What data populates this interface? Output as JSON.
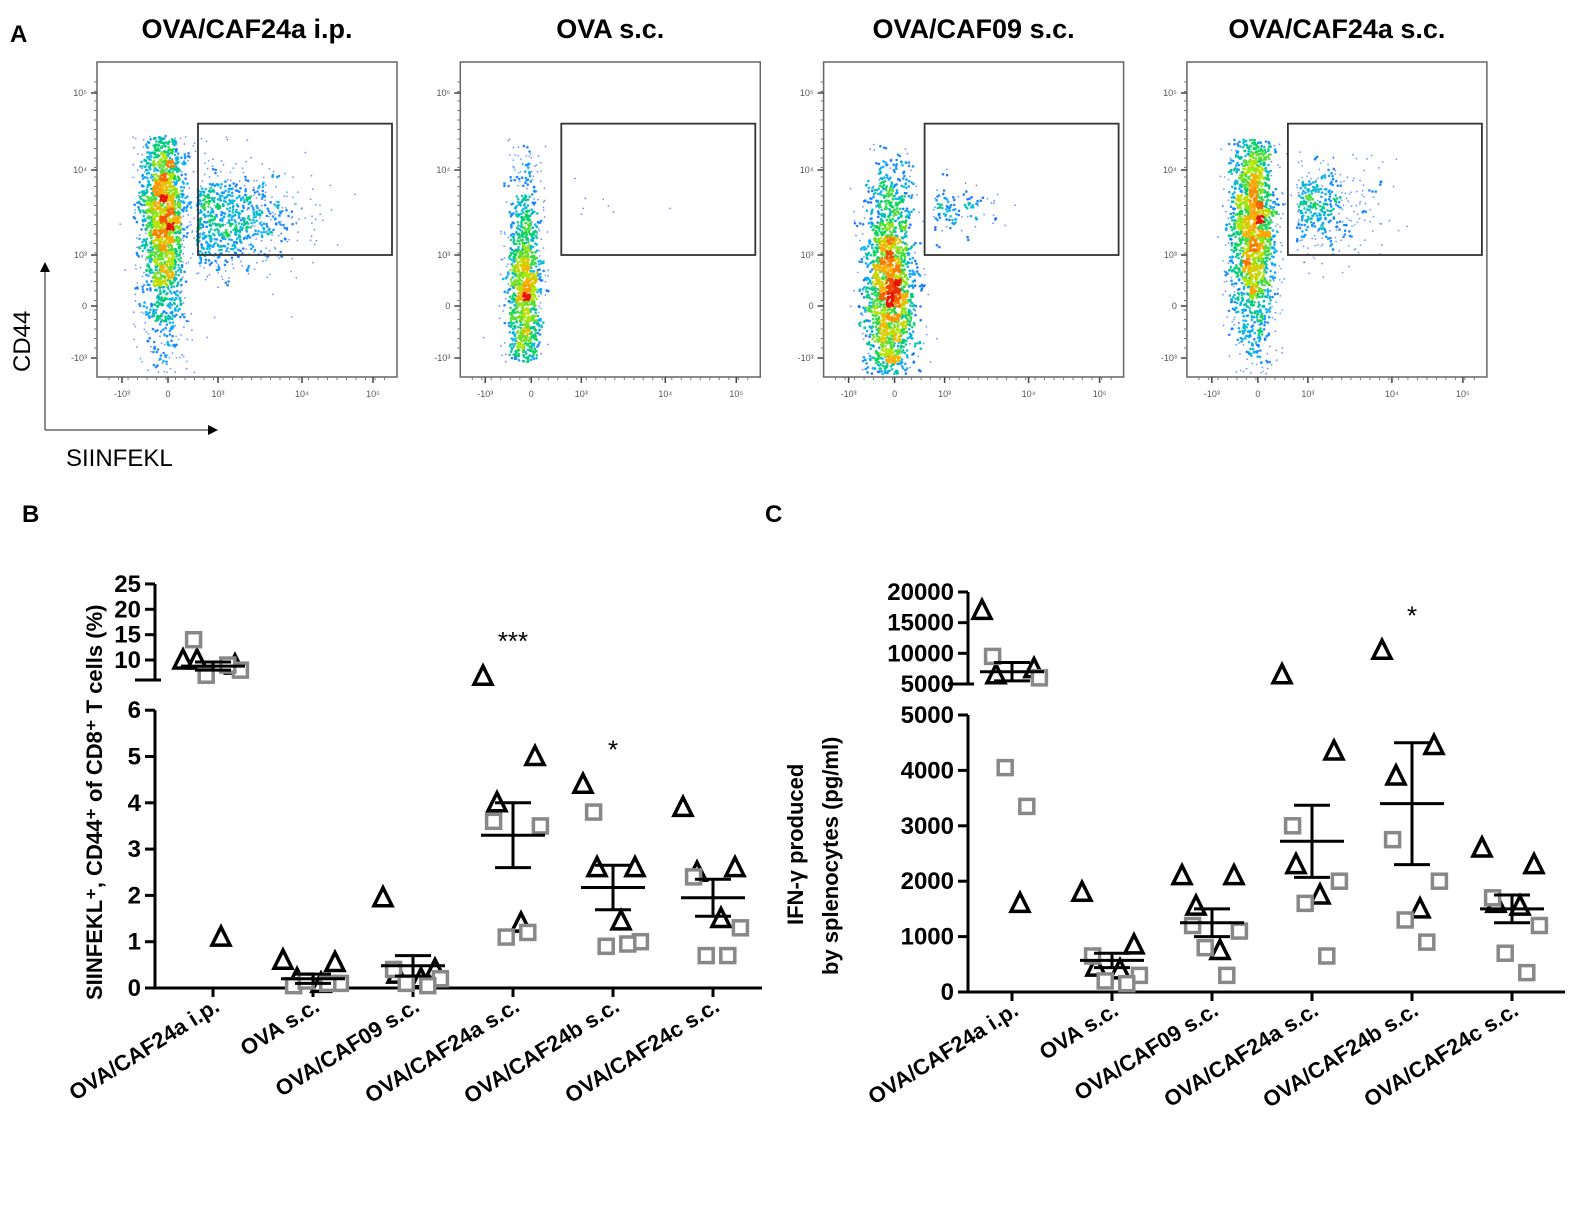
{
  "panel_letters": {
    "a": "A",
    "b": "B",
    "c": "C"
  },
  "colors": {
    "triangle": "#000000",
    "square": "#888888",
    "gate": "#333333",
    "axis": "#000000"
  },
  "chart_data": [
    {
      "type": "scatter",
      "panel": "A",
      "xlabel": "SIINFEKL",
      "ylabel": "CD44",
      "x_ticks": [
        {
          "v": -1000,
          "label": "-10³"
        },
        {
          "v": 0,
          "label": "0"
        },
        {
          "v": 1000,
          "label": "10³"
        },
        {
          "v": 10000,
          "label": "10⁴"
        },
        {
          "v": 100000,
          "label": "10⁵"
        }
      ],
      "y_ticks": [
        {
          "v": -1000,
          "label": "-10³"
        },
        {
          "v": 0,
          "label": "0"
        },
        {
          "v": 1000,
          "label": "10³"
        },
        {
          "v": 10000,
          "label": "10⁴"
        },
        {
          "v": 100000,
          "label": "10⁵"
        }
      ],
      "gate": {
        "x": [
          600,
          200000
        ],
        "y": [
          1000,
          40000
        ]
      },
      "plots": [
        {
          "title": "OVA/CAF24a i.p.",
          "populations": [
            {
              "kind": "main",
              "x_center": -100,
              "x_sd": 230,
              "y_range": [
                -1500,
                25000
              ],
              "y_hot": 3000,
              "events": 1900
            },
            {
              "kind": "cloud",
              "x_range": [
                500,
                9000
              ],
              "y_range": [
                300,
                15000
              ],
              "y_hot": 2500,
              "events": 750
            }
          ]
        },
        {
          "title": "OVA s.c.",
          "populations": [
            {
              "kind": "main",
              "x_center": -150,
              "x_sd": 170,
              "y_range": [
                -1000,
                25000
              ],
              "y_hot": 200,
              "events": 1200
            },
            {
              "kind": "cloud",
              "x_range": [
                700,
                8000
              ],
              "y_range": [
                1500,
                12000
              ],
              "y_hot": 4000,
              "events": 8
            }
          ]
        },
        {
          "title": "OVA/CAF09 s.c.",
          "populations": [
            {
              "kind": "main",
              "x_center": -120,
              "x_sd": 250,
              "y_range": [
                -1500,
                20000
              ],
              "y_hot": 300,
              "events": 2000
            },
            {
              "kind": "cloud",
              "x_range": [
                700,
                4500
              ],
              "y_range": [
                1200,
                8000
              ],
              "y_hot": 3500,
              "events": 110
            }
          ]
        },
        {
          "title": "OVA/CAF24a s.c.",
          "populations": [
            {
              "kind": "main",
              "x_center": -100,
              "x_sd": 230,
              "y_range": [
                -1500,
                22000
              ],
              "y_hot": 2000,
              "events": 1900
            },
            {
              "kind": "cloud",
              "x_range": [
                700,
                6000
              ],
              "y_range": [
                600,
                15000
              ],
              "y_hot": 3500,
              "events": 380
            }
          ]
        }
      ]
    },
    {
      "type": "scatter",
      "panel": "B",
      "ylabel": "SIINFEKL⁺, CD44⁺ of CD8⁺ T cells (%)",
      "categories": [
        "OVA/CAF24a i.p.",
        "OVA s.c.",
        "OVA/CAF09 s.c.",
        "OVA/CAF24a s.c.",
        "OVA/CAF24b s.c.",
        "OVA/CAF24c s.c."
      ],
      "y_ticks_lower": [
        0,
        1,
        2,
        3,
        4,
        5,
        6
      ],
      "y_ticks_upper": [
        10,
        15,
        20,
        25
      ],
      "ylim_lower": [
        0,
        6
      ],
      "ylim_upper": [
        7,
        25
      ],
      "series": [
        {
          "name": "triangles",
          "marker": "triangle",
          "values": [
            [
              10,
              9,
              10,
              1.1
            ],
            [
              0.6,
              0.55,
              0.2,
              0.1
            ],
            [
              1.95,
              0.4,
              0.3,
              0.2
            ],
            [
              6.8,
              5.0,
              4.0,
              1.4
            ],
            [
              4.4,
              2.6,
              2.6,
              1.45
            ],
            [
              3.9,
              2.6,
              2.5,
              1.5
            ]
          ]
        },
        {
          "name": "squares",
          "marker": "square",
          "values": [
            [
              14,
              8,
              7,
              9
            ],
            [
              0.05,
              0.1,
              0.15,
              0.1
            ],
            [
              0.4,
              0.2,
              0.1,
              0.05
            ],
            [
              3.6,
              3.5,
              1.1,
              1.2
            ],
            [
              3.8,
              1.0,
              0.9,
              0.95
            ],
            [
              2.4,
              1.3,
              0.7,
              0.7
            ]
          ]
        }
      ],
      "mean": [
        8.8,
        0.2,
        0.48,
        3.3,
        2.17,
        1.95
      ],
      "sem": [
        0.8,
        0.1,
        0.22,
        0.7,
        0.48,
        0.4
      ],
      "significance": [
        "",
        "",
        "",
        "***",
        "*",
        ""
      ]
    },
    {
      "type": "scatter",
      "panel": "C",
      "ylabel": [
        "IFN-γ produced",
        "by splenocytes (pg/ml)"
      ],
      "categories": [
        "OVA/CAF24a i.p.",
        "OVA s.c.",
        "OVA/CAF09 s.c.",
        "OVA/CAF24a s.c.",
        "OVA/CAF24b s.c.",
        "OVA/CAF24c s.c."
      ],
      "y_ticks_lower": [
        0,
        1000,
        2000,
        3000,
        4000,
        5000
      ],
      "y_ticks_upper": [
        5000,
        10000,
        15000,
        20000
      ],
      "ylim_lower": [
        0,
        5000
      ],
      "ylim_upper": [
        5000,
        20000
      ],
      "series": [
        {
          "name": "triangles",
          "marker": "triangle",
          "values": [
            [
              17000,
              7500,
              6500,
              1600
            ],
            [
              1800,
              850,
              450,
              400
            ],
            [
              2100,
              2100,
              1550,
              750
            ],
            [
              6500,
              4350,
              2300,
              1750
            ],
            [
              10500,
              4450,
              3900,
              1500
            ],
            [
              2600,
              2300,
              1600,
              1550
            ]
          ]
        },
        {
          "name": "squares",
          "marker": "square",
          "values": [
            [
              9500,
              6000,
              4050,
              3350
            ],
            [
              650,
              300,
              200,
              150
            ],
            [
              1200,
              1100,
              800,
              300
            ],
            [
              3000,
              2000,
              1600,
              650
            ],
            [
              2750,
              2000,
              1300,
              900
            ],
            [
              1700,
              1200,
              700,
              350
            ]
          ]
        }
      ],
      "mean": [
        7000,
        570,
        1250,
        2720,
        3400,
        1500
      ],
      "sem": [
        1500,
        130,
        250,
        650,
        1100,
        250
      ],
      "significance": [
        "",
        "",
        "",
        "",
        "*",
        ""
      ]
    }
  ]
}
